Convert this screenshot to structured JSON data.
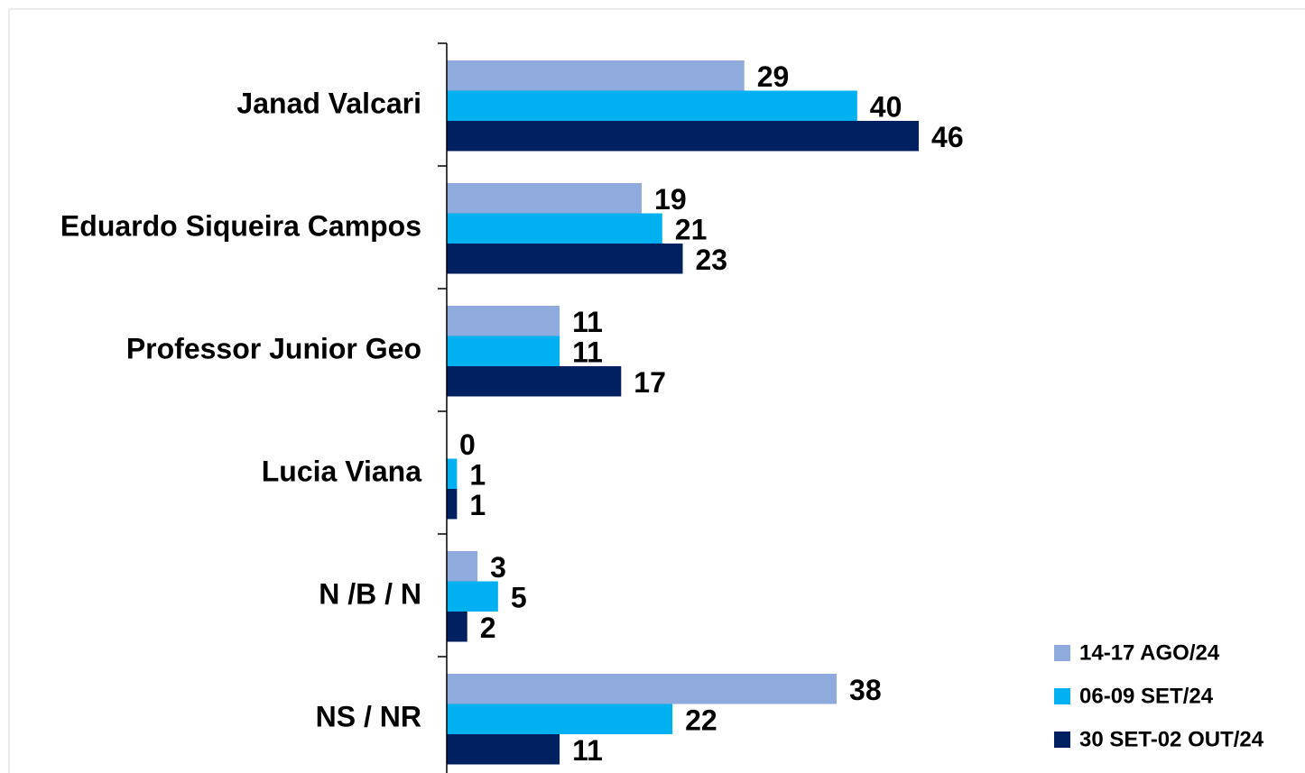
{
  "chart_data": {
    "type": "bar",
    "orientation": "horizontal",
    "categories": [
      "Janad Valcari",
      "Eduardo Siqueira Campos",
      "Professor Junior Geo",
      "Lucia Viana",
      "N /B / N",
      "NS / NR"
    ],
    "series": [
      {
        "name": "14-17 AGO/24",
        "color": "#8faadc",
        "values": [
          29,
          19,
          11,
          0,
          3,
          38
        ]
      },
      {
        "name": "06-09 SET/24",
        "color": "#00b0f0",
        "values": [
          40,
          21,
          11,
          1,
          5,
          22
        ]
      },
      {
        "name": "30 SET-02 OUT/24",
        "color": "#002060",
        "values": [
          46,
          23,
          17,
          1,
          2,
          11
        ]
      }
    ],
    "xlim": [
      0,
      80
    ],
    "legend": "bottom-right"
  }
}
